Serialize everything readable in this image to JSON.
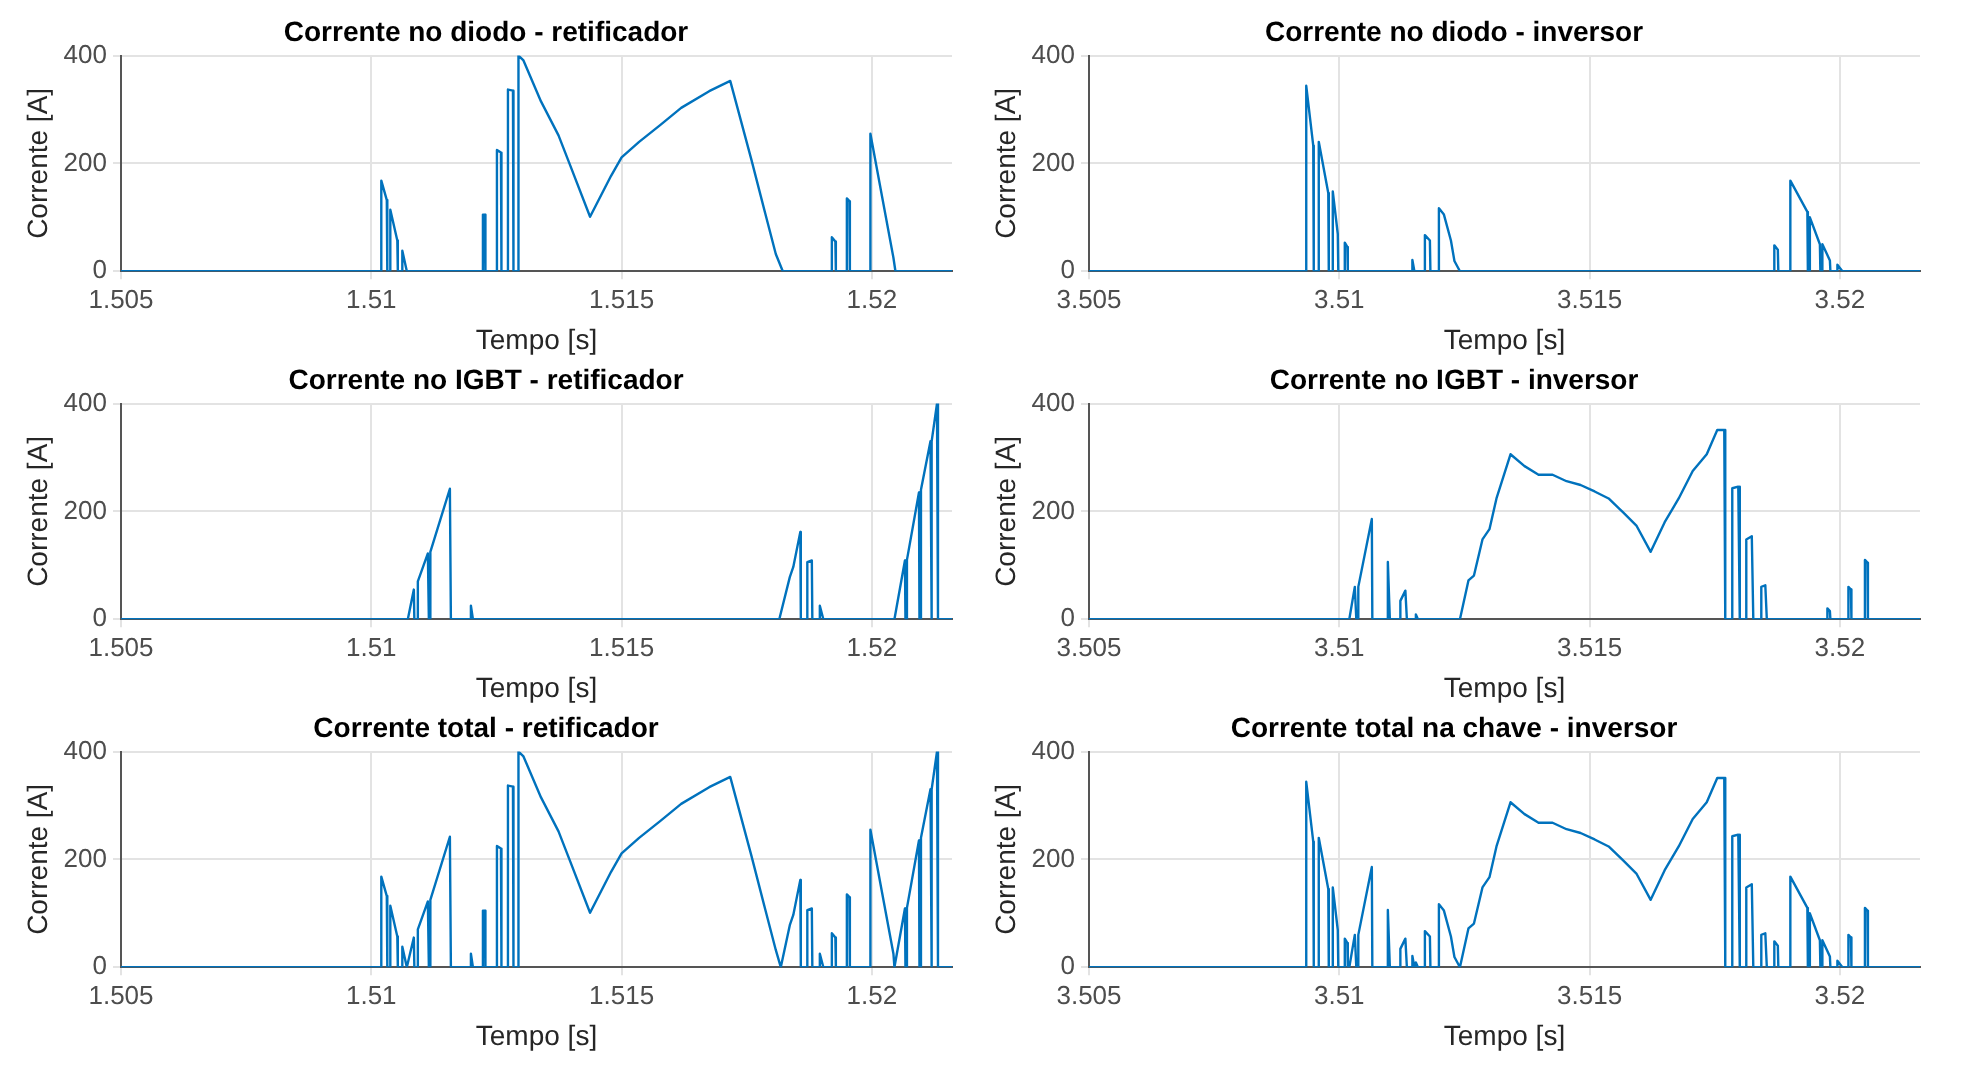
{
  "chart_data": [
    {
      "type": "line",
      "title": "Corrente no diodo - retificador",
      "xlabel": "Tempo [s]",
      "ylabel": "Corrente [A]",
      "xlim": [
        1.505,
        1.5216
      ],
      "xticks": [
        1.505,
        1.51,
        1.515,
        1.52
      ],
      "ylim": [
        0,
        400
      ],
      "yticks": [
        0,
        200,
        400
      ],
      "grid": true,
      "marker": "none",
      "line_style": "solid",
      "series": [
        {
          "color": "#0072bd",
          "x": [
            1.505,
            1.5102,
            1.5102,
            1.51031,
            1.51032,
            1.51038,
            1.51038,
            1.51052,
            1.51053,
            1.51062,
            1.51062,
            1.51071,
            1.51223,
            1.51223,
            1.51227,
            1.51228,
            1.51251,
            1.51251,
            1.51259,
            1.5126,
            1.51273,
            1.51273,
            1.51283,
            1.51284,
            1.51294,
            1.51294,
            1.51304,
            1.51339,
            1.51374,
            1.51395,
            1.51437,
            1.51479,
            1.515,
            1.51535,
            1.51577,
            1.51619,
            1.51675,
            1.51717,
            1.51759,
            1.51787,
            1.51808,
            1.51822,
            1.5192,
            1.5192,
            1.51927,
            1.51928,
            1.5195,
            1.5195,
            1.51955,
            1.51956,
            1.51997,
            1.51997,
            1.52043,
            1.52047,
            1.5216
          ],
          "values": [
            0,
            0,
            168,
            132,
            0,
            0,
            114,
            57,
            0,
            0,
            38,
            0,
            0,
            105,
            105,
            0,
            0,
            225,
            220,
            0,
            0,
            337,
            335,
            0,
            0,
            400,
            391,
            315,
            252,
            202,
            101,
            177,
            211,
            240,
            271,
            303,
            334,
            353,
            208,
            107,
            32,
            0,
            0,
            63,
            55,
            0,
            0,
            135,
            130,
            0,
            0,
            255,
            25,
            0,
            0
          ]
        }
      ]
    },
    {
      "type": "line",
      "title": "Corrente no diodo - inversor",
      "xlabel": "Tempo [s]",
      "ylabel": "Corrente [A]",
      "xlim": [
        3.505,
        3.5216
      ],
      "xticks": [
        3.505,
        3.51,
        3.515,
        3.52
      ],
      "ylim": [
        0,
        400
      ],
      "yticks": [
        0,
        200,
        400
      ],
      "grid": true,
      "marker": "none",
      "line_style": "solid",
      "series": [
        {
          "color": "#0072bd",
          "x": [
            3.505,
            3.50934,
            3.50934,
            3.50948,
            3.50949,
            3.50959,
            3.50959,
            3.50978,
            3.50979,
            3.50987,
            3.50987,
            3.50997,
            3.50998,
            3.51011,
            3.51011,
            3.51016,
            3.51017,
            3.51146,
            3.51146,
            3.5115,
            3.51171,
            3.51171,
            3.51181,
            3.51182,
            3.51199,
            3.51199,
            3.51209,
            3.51223,
            3.5123,
            3.51241,
            3.51869,
            3.51869,
            3.51876,
            3.51877,
            3.51901,
            3.51901,
            3.51935,
            3.51936,
            3.5194,
            3.5194,
            3.5196,
            3.51961,
            3.51965,
            3.51965,
            3.5198,
            3.51981,
            3.51995,
            3.51995,
            3.52005,
            3.5216
          ],
          "values": [
            0,
            0,
            344,
            233,
            0,
            0,
            240,
            145,
            0,
            0,
            148,
            69,
            0,
            0,
            53,
            45,
            0,
            0,
            21,
            0,
            0,
            67,
            57,
            0,
            0,
            117,
            105,
            57,
            19,
            0,
            0,
            48,
            40,
            0,
            0,
            168,
            110,
            0,
            0,
            100,
            50,
            0,
            0,
            50,
            20,
            0,
            0,
            12,
            0,
            0
          ]
        }
      ]
    },
    {
      "type": "line",
      "title": "Corrente no IGBT - retificador",
      "xlabel": "Tempo [s]",
      "ylabel": "Corrente [A]",
      "xlim": [
        1.505,
        1.5216
      ],
      "xticks": [
        1.505,
        1.51,
        1.515,
        1.52
      ],
      "ylim": [
        0,
        400
      ],
      "yticks": [
        0,
        200,
        400
      ],
      "grid": true,
      "marker": "none",
      "line_style": "solid",
      "series": [
        {
          "color": "#0072bd",
          "x": [
            1.505,
            1.51073,
            1.51085,
            1.51086,
            1.51093,
            1.51093,
            1.51113,
            1.51115,
            1.51118,
            1.51118,
            1.51157,
            1.51159,
            1.51199,
            1.51199,
            1.51203,
            1.51815,
            1.51836,
            1.51843,
            1.51857,
            1.51858,
            1.51871,
            1.51871,
            1.5188,
            1.51881,
            1.51896,
            1.51896,
            1.51903,
            1.52045,
            1.52066,
            1.52067,
            1.5207,
            1.5207,
            1.52094,
            1.52095,
            1.52098,
            1.52098,
            1.52117,
            1.52118,
            1.5212,
            1.5212,
            1.5213,
            1.52132,
            1.5216
          ],
          "values": [
            0,
            0,
            55,
            0,
            0,
            70,
            122,
            0,
            0,
            125,
            242,
            0,
            0,
            25,
            0,
            0,
            78,
            97,
            162,
            0,
            0,
            106,
            109,
            0,
            0,
            25,
            0,
            0,
            109,
            0,
            0,
            110,
            235,
            0,
            0,
            240,
            330,
            0,
            0,
            330,
            400,
            0,
            0
          ]
        }
      ]
    },
    {
      "type": "line",
      "title": "Corrente no IGBT - inversor",
      "xlabel": "Tempo [s]",
      "ylabel": "Corrente [A]",
      "xlim": [
        3.505,
        3.5216
      ],
      "xticks": [
        3.505,
        3.51,
        3.515,
        3.52
      ],
      "ylim": [
        0,
        400
      ],
      "yticks": [
        0,
        200,
        400
      ],
      "grid": true,
      "marker": "none",
      "line_style": "solid",
      "series": [
        {
          "color": "#0072bd",
          "x": [
            3.505,
            3.5102,
            3.51031,
            3.51034,
            3.51038,
            3.51038,
            3.51065,
            3.51066,
            3.51097,
            3.51097,
            3.51101,
            3.51122,
            3.51122,
            3.51132,
            3.51135,
            3.51153,
            3.51153,
            3.51157,
            3.51241,
            3.51258,
            3.51269,
            3.51286,
            3.513,
            3.51314,
            3.51342,
            3.5137,
            3.51398,
            3.51426,
            3.51454,
            3.51482,
            3.5151,
            3.51538,
            3.51566,
            3.51594,
            3.51622,
            3.5165,
            3.51678,
            3.51706,
            3.51734,
            3.51755,
            3.51769,
            3.51771,
            3.51785,
            3.51785,
            3.51797,
            3.518,
            3.51813,
            3.51813,
            3.51824,
            3.51827,
            3.51843,
            3.51843,
            3.51851,
            3.51854,
            3.51975,
            3.51975,
            3.5198,
            3.51981,
            3.52017,
            3.52017,
            3.52022,
            3.52023,
            3.5205,
            3.5205,
            3.52055,
            3.52056,
            3.5216
          ],
          "values": [
            0,
            0,
            60,
            0,
            0,
            60,
            186,
            0,
            0,
            106,
            0,
            0,
            34,
            53,
            0,
            0,
            9,
            0,
            0,
            72,
            81,
            148,
            167,
            224,
            306,
            284,
            268,
            268,
            256,
            249,
            237,
            224,
            199,
            173,
            125,
            180,
            224,
            275,
            306,
            351,
            351,
            0,
            0,
            243,
            246,
            0,
            0,
            148,
            154,
            0,
            0,
            60,
            63,
            0,
            0,
            20,
            15,
            0,
            0,
            60,
            55,
            0,
            0,
            110,
            105,
            0,
            0
          ]
        }
      ]
    },
    {
      "type": "line",
      "title": "Corrente total - retificador",
      "xlabel": "Tempo [s]",
      "ylabel": "Corrente [A]",
      "xlim": [
        1.505,
        1.5216
      ],
      "xticks": [
        1.505,
        1.51,
        1.515,
        1.52
      ],
      "ylim": [
        0,
        400
      ],
      "yticks": [
        0,
        200,
        400
      ],
      "grid": true,
      "marker": "none",
      "line_style": "solid",
      "series": [
        {
          "color": "#0072bd",
          "x": [
            1.505,
            1.5102,
            1.5102,
            1.51031,
            1.51032,
            1.51038,
            1.51038,
            1.51052,
            1.51053,
            1.51062,
            1.51062,
            1.51071,
            1.51073,
            1.51085,
            1.51086,
            1.51093,
            1.51093,
            1.51113,
            1.51115,
            1.51118,
            1.51118,
            1.51157,
            1.51159,
            1.51199,
            1.51199,
            1.51203,
            1.51223,
            1.51223,
            1.51227,
            1.51228,
            1.51251,
            1.51251,
            1.51259,
            1.5126,
            1.51273,
            1.51273,
            1.51283,
            1.51284,
            1.51294,
            1.51294,
            1.51304,
            1.51339,
            1.51374,
            1.51395,
            1.51437,
            1.51479,
            1.515,
            1.51535,
            1.51577,
            1.51619,
            1.51675,
            1.51717,
            1.51759,
            1.51787,
            1.51808,
            1.51818,
            1.51836,
            1.51843,
            1.51857,
            1.51858,
            1.51871,
            1.51871,
            1.5188,
            1.51881,
            1.51896,
            1.51896,
            1.51903,
            1.5192,
            1.5192,
            1.51927,
            1.51928,
            1.5195,
            1.5195,
            1.51955,
            1.51956,
            1.51997,
            1.51997,
            1.52043,
            1.52045,
            1.52066,
            1.52067,
            1.5207,
            1.5207,
            1.52094,
            1.52095,
            1.52098,
            1.52098,
            1.52117,
            1.52118,
            1.5212,
            1.5212,
            1.5213,
            1.52132,
            1.5216
          ],
          "values": [
            0,
            0,
            168,
            132,
            0,
            0,
            114,
            57,
            0,
            0,
            38,
            0,
            0,
            55,
            0,
            0,
            70,
            122,
            0,
            0,
            125,
            242,
            0,
            0,
            25,
            0,
            0,
            105,
            105,
            0,
            0,
            225,
            220,
            0,
            0,
            337,
            335,
            0,
            0,
            400,
            391,
            315,
            252,
            202,
            101,
            177,
            211,
            240,
            271,
            303,
            334,
            353,
            208,
            107,
            32,
            0,
            78,
            97,
            162,
            0,
            0,
            106,
            109,
            0,
            0,
            25,
            0,
            0,
            63,
            55,
            0,
            0,
            135,
            130,
            0,
            0,
            255,
            25,
            0,
            109,
            0,
            0,
            110,
            235,
            0,
            0,
            240,
            330,
            0,
            0,
            330,
            400,
            0,
            0
          ]
        }
      ]
    },
    {
      "type": "line",
      "title": "Corrente total na chave - inversor",
      "xlabel": "Tempo [s]",
      "ylabel": "Corrente [A]",
      "xlim": [
        3.505,
        3.5216
      ],
      "xticks": [
        3.505,
        3.51,
        3.515,
        3.52
      ],
      "ylim": [
        0,
        400
      ],
      "yticks": [
        0,
        200,
        400
      ],
      "grid": true,
      "marker": "none",
      "line_style": "solid",
      "series": [
        {
          "color": "#0072bd",
          "x": [
            3.505,
            3.50934,
            3.50934,
            3.50948,
            3.50949,
            3.50959,
            3.50959,
            3.50978,
            3.50979,
            3.50987,
            3.50987,
            3.50997,
            3.50998,
            3.51011,
            3.51011,
            3.51016,
            3.51017,
            3.5102,
            3.51031,
            3.51034,
            3.51038,
            3.51038,
            3.51065,
            3.51066,
            3.51097,
            3.51097,
            3.51101,
            3.51122,
            3.51122,
            3.51132,
            3.51135,
            3.51146,
            3.51146,
            3.5115,
            3.51153,
            3.51153,
            3.51157,
            3.51171,
            3.51171,
            3.51181,
            3.51182,
            3.51199,
            3.51199,
            3.51209,
            3.51223,
            3.5123,
            3.51241,
            3.51258,
            3.51269,
            3.51286,
            3.513,
            3.51314,
            3.51342,
            3.5137,
            3.51398,
            3.51426,
            3.51454,
            3.51482,
            3.5151,
            3.51538,
            3.51566,
            3.51594,
            3.51622,
            3.5165,
            3.51678,
            3.51706,
            3.51734,
            3.51755,
            3.51769,
            3.51771,
            3.51785,
            3.51785,
            3.51797,
            3.518,
            3.51813,
            3.51813,
            3.51824,
            3.51827,
            3.51843,
            3.51843,
            3.51851,
            3.51854,
            3.51869,
            3.51869,
            3.51876,
            3.51877,
            3.51901,
            3.51901,
            3.51935,
            3.51936,
            3.5194,
            3.5194,
            3.5196,
            3.51961,
            3.51965,
            3.51965,
            3.5198,
            3.51981,
            3.51995,
            3.51995,
            3.52005,
            3.52017,
            3.52017,
            3.52022,
            3.52023,
            3.5205,
            3.5205,
            3.52055,
            3.52056,
            3.5216
          ],
          "values": [
            0,
            0,
            344,
            233,
            0,
            0,
            240,
            145,
            0,
            0,
            148,
            69,
            0,
            0,
            53,
            45,
            0,
            0,
            60,
            0,
            0,
            60,
            186,
            0,
            0,
            106,
            0,
            0,
            34,
            53,
            0,
            0,
            21,
            0,
            0,
            9,
            0,
            0,
            67,
            57,
            0,
            0,
            117,
            105,
            57,
            19,
            0,
            72,
            81,
            148,
            167,
            224,
            306,
            284,
            268,
            268,
            256,
            249,
            237,
            224,
            199,
            173,
            125,
            180,
            224,
            275,
            306,
            351,
            351,
            0,
            0,
            243,
            246,
            0,
            0,
            148,
            154,
            0,
            0,
            60,
            63,
            0,
            0,
            48,
            40,
            0,
            0,
            168,
            110,
            0,
            0,
            100,
            50,
            0,
            0,
            50,
            20,
            0,
            0,
            12,
            0,
            0,
            60,
            55,
            0,
            0,
            110,
            105,
            0,
            0
          ]
        }
      ]
    }
  ]
}
